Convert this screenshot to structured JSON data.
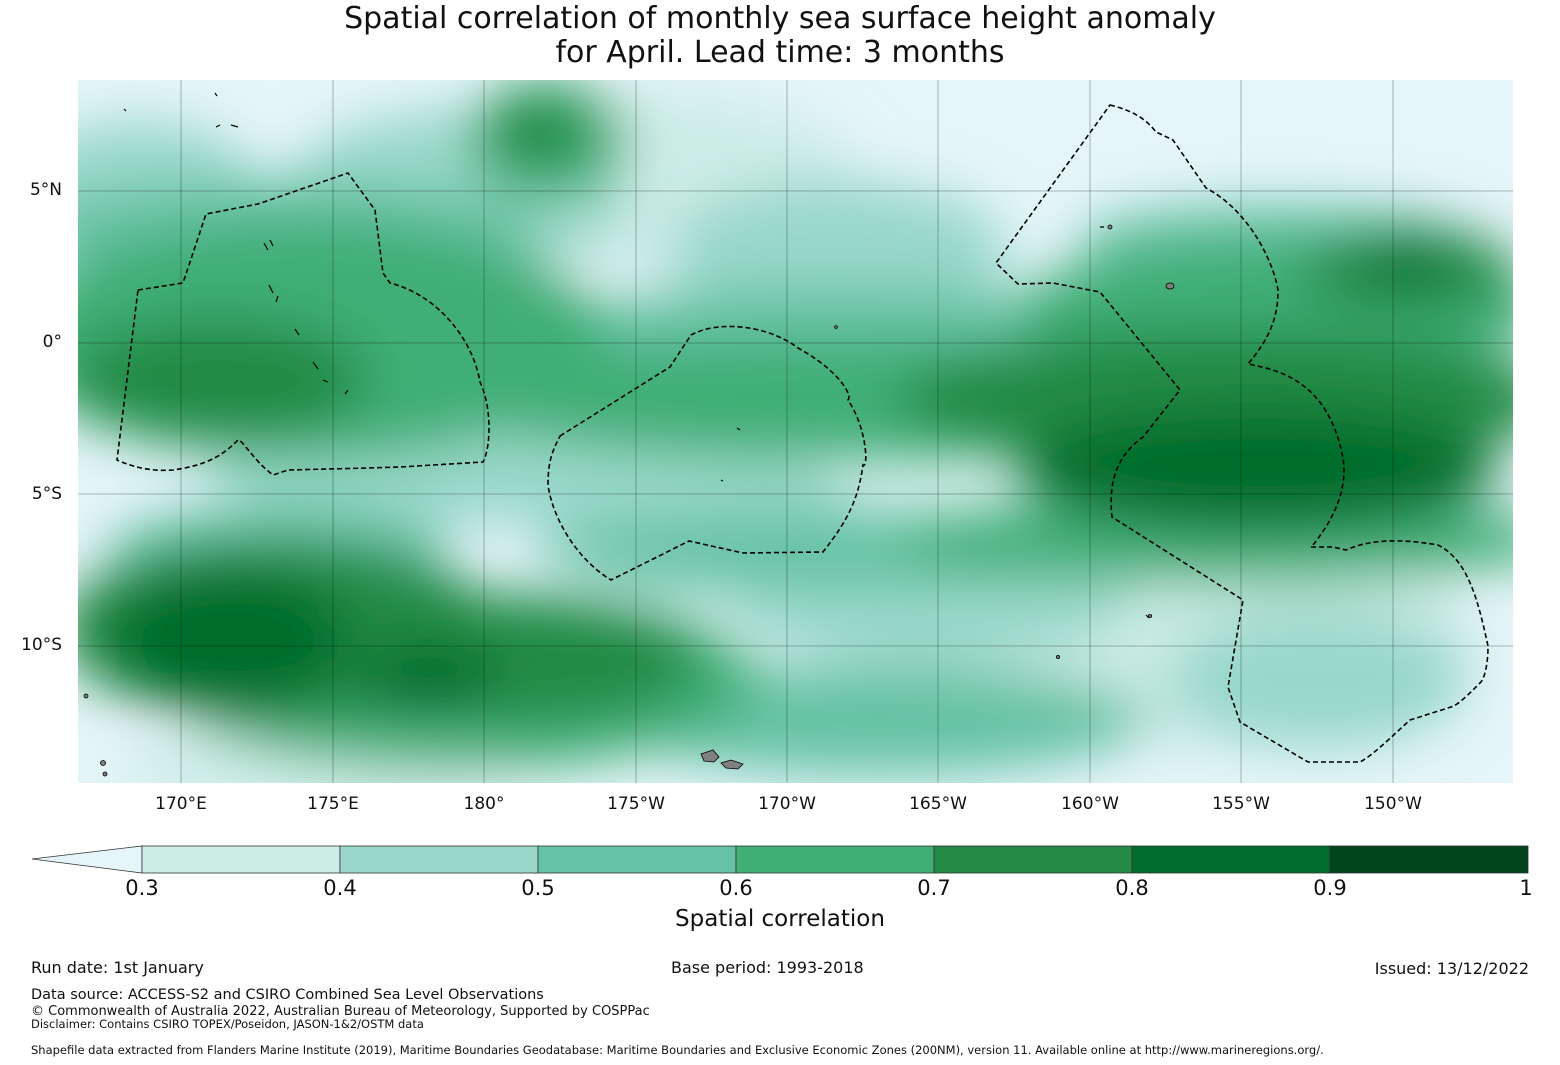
{
  "title": {
    "line1": "Spatial correlation of monthly sea surface height anomaly",
    "line2": "for April. Lead time: 3 months"
  },
  "map": {
    "lat_labels": [
      "5°N",
      "0°",
      "5°S",
      "10°S"
    ],
    "lon_labels": [
      "170°E",
      "175°E",
      "180°",
      "175°W",
      "170°W",
      "165°W",
      "160°W",
      "155°W",
      "150°W"
    ],
    "background_color": "#e5f5f9",
    "eez_boundary_color": "#000000",
    "land_color": "#808080"
  },
  "colorbar": {
    "label": "Spatial correlation",
    "ticks": [
      "0.3",
      "0.4",
      "0.5",
      "0.6",
      "0.7",
      "0.8",
      "0.9",
      "1"
    ],
    "under_color": "#e5f5f9",
    "levels": [
      {
        "from": 0.3,
        "to": 0.4,
        "color": "#ccece6"
      },
      {
        "from": 0.4,
        "to": 0.5,
        "color": "#99d8c9"
      },
      {
        "from": 0.5,
        "to": 0.6,
        "color": "#66c2a4"
      },
      {
        "from": 0.6,
        "to": 0.7,
        "color": "#41ae76"
      },
      {
        "from": 0.7,
        "to": 0.8,
        "color": "#238b45"
      },
      {
        "from": 0.8,
        "to": 0.9,
        "color": "#006d2c"
      },
      {
        "from": 0.9,
        "to": 1.0,
        "color": "#00441b"
      }
    ]
  },
  "footer": {
    "run_date": "Run date: 1st January",
    "base_period": "Base period: 1993-2018",
    "issued": "Issued: 13/12/2022",
    "data_source": "Data source: ACCESS-S2 and CSIRO Combined Sea Level Observations",
    "copyright": "© Commonwealth of Australia 2022, Australian Bureau of Meteorology, Supported by COSPPac",
    "disclaimer": "Disclaimer: Contains CSIRO TOPEX/Poseidon, JASON-1&2/OSTM data",
    "shapefile": "Shapefile data extracted from Flanders Marine Institute (2019), Maritime Boundaries Geodatabase: Maritime Boundaries and Exclusive Economic Zones (200NM), version 11. Available online at http://www.marineregions.org/."
  }
}
